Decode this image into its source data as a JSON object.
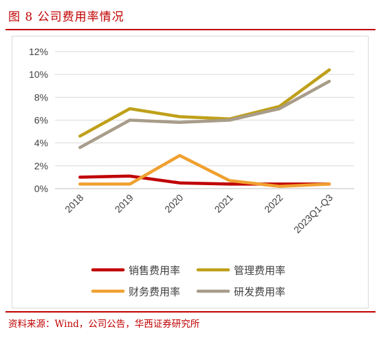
{
  "figure_title": "图 8  公司费用率情况",
  "source": "资料来源：Wind，公司公告，华西证券研究所",
  "chart_data": {
    "type": "line",
    "categories": [
      "2018",
      "2019",
      "2020",
      "2021",
      "2022",
      "2023Q1-Q3"
    ],
    "y_ticks": [
      "0%",
      "2%",
      "4%",
      "6%",
      "8%",
      "10%",
      "12%"
    ],
    "ylim": [
      0,
      12
    ],
    "grid": true,
    "legend_position": "bottom",
    "series": [
      {
        "name": "销售费用率",
        "color": "#c00000",
        "values": [
          1.0,
          1.1,
          0.5,
          0.4,
          0.4,
          0.4
        ]
      },
      {
        "name": "管理费用率",
        "color": "#bfa01a",
        "values": [
          4.6,
          7.0,
          6.3,
          6.1,
          7.2,
          10.4
        ]
      },
      {
        "name": "财务费用率",
        "color": "#f0a030",
        "values": [
          0.4,
          0.4,
          2.9,
          0.7,
          0.2,
          0.4
        ]
      },
      {
        "name": "研发费用率",
        "color": "#a89c8a",
        "values": [
          3.6,
          6.0,
          5.8,
          6.0,
          7.0,
          9.4
        ]
      }
    ]
  }
}
